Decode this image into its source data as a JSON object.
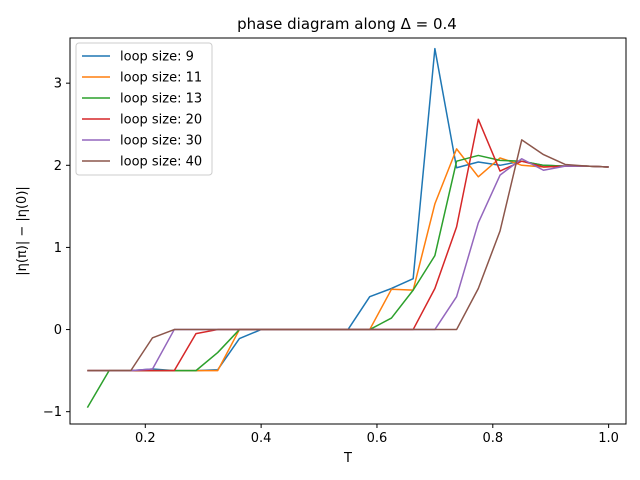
{
  "chart_data": {
    "type": "line",
    "title": "phase diagram along Δ = 0.4",
    "xlabel": "T",
    "ylabel": "|η(π)| − |η(0)|",
    "xlim": [
      0.07,
      1.03
    ],
    "ylim": [
      -1.15,
      3.55
    ],
    "xticks": [
      0.2,
      0.4,
      0.6,
      0.8,
      1.0
    ],
    "xtick_labels": [
      "0.2",
      "0.4",
      "0.6",
      "0.8",
      "1.0"
    ],
    "yticks": [
      -1,
      0,
      1,
      2,
      3
    ],
    "ytick_labels": [
      "−1",
      "0",
      "1",
      "2",
      "3"
    ],
    "grid": false,
    "legend_position": "top-left",
    "x": [
      0.1,
      0.1375,
      0.175,
      0.2125,
      0.25,
      0.2875,
      0.325,
      0.3625,
      0.4,
      0.4375,
      0.475,
      0.5125,
      0.55,
      0.5875,
      0.625,
      0.6625,
      0.7,
      0.7375,
      0.775,
      0.8125,
      0.85,
      0.8875,
      0.925,
      0.9625,
      1.0
    ],
    "series": [
      {
        "name": "loop size: 9",
        "color": "#1f77b4",
        "values": [
          -0.5,
          -0.5,
          -0.5,
          -0.48,
          -0.5,
          -0.5,
          -0.49,
          -0.11,
          0.0,
          0.0,
          0.0,
          0.0,
          0.0,
          0.4,
          0.5,
          0.62,
          3.42,
          1.97,
          2.04,
          2.0,
          2.05,
          2.0,
          1.99,
          1.99,
          1.98
        ]
      },
      {
        "name": "loop size: 11",
        "color": "#ff7f0e",
        "values": [
          -0.5,
          -0.5,
          -0.5,
          -0.5,
          -0.5,
          -0.5,
          -0.5,
          0.0,
          0.0,
          0.0,
          0.0,
          0.0,
          0.0,
          0.0,
          0.49,
          0.48,
          1.53,
          2.2,
          1.86,
          2.09,
          2.0,
          1.98,
          1.99,
          1.99,
          1.98
        ]
      },
      {
        "name": "loop size: 13",
        "color": "#2ca02c",
        "values": [
          -0.95,
          -0.5,
          -0.5,
          -0.5,
          -0.5,
          -0.5,
          -0.28,
          0.0,
          0.0,
          0.0,
          0.0,
          0.0,
          0.0,
          0.0,
          0.14,
          0.48,
          0.9,
          2.05,
          2.12,
          2.06,
          2.05,
          2.0,
          1.99,
          1.99,
          1.98
        ]
      },
      {
        "name": "loop size: 20",
        "color": "#d62728",
        "values": [
          -0.5,
          -0.5,
          -0.5,
          -0.5,
          -0.5,
          -0.05,
          0.0,
          0.0,
          0.0,
          0.0,
          0.0,
          0.0,
          0.0,
          0.0,
          0.0,
          0.0,
          0.5,
          1.25,
          2.56,
          1.93,
          2.05,
          1.98,
          1.99,
          1.99,
          1.98
        ]
      },
      {
        "name": "loop size: 30",
        "color": "#9467bd",
        "values": [
          -0.5,
          -0.5,
          -0.5,
          -0.48,
          0.0,
          0.0,
          0.0,
          0.0,
          0.0,
          0.0,
          0.0,
          0.0,
          0.0,
          0.0,
          0.0,
          0.0,
          0.0,
          0.4,
          1.3,
          1.88,
          2.08,
          1.94,
          1.99,
          1.99,
          1.98
        ]
      },
      {
        "name": "loop size: 40",
        "color": "#8c564b",
        "values": [
          -0.5,
          -0.5,
          -0.5,
          -0.1,
          0.0,
          0.0,
          0.0,
          0.0,
          0.0,
          0.0,
          0.0,
          0.0,
          0.0,
          0.0,
          0.0,
          0.0,
          0.0,
          0.0,
          0.5,
          1.2,
          2.31,
          2.13,
          2.01,
          1.99,
          1.98
        ]
      }
    ]
  }
}
